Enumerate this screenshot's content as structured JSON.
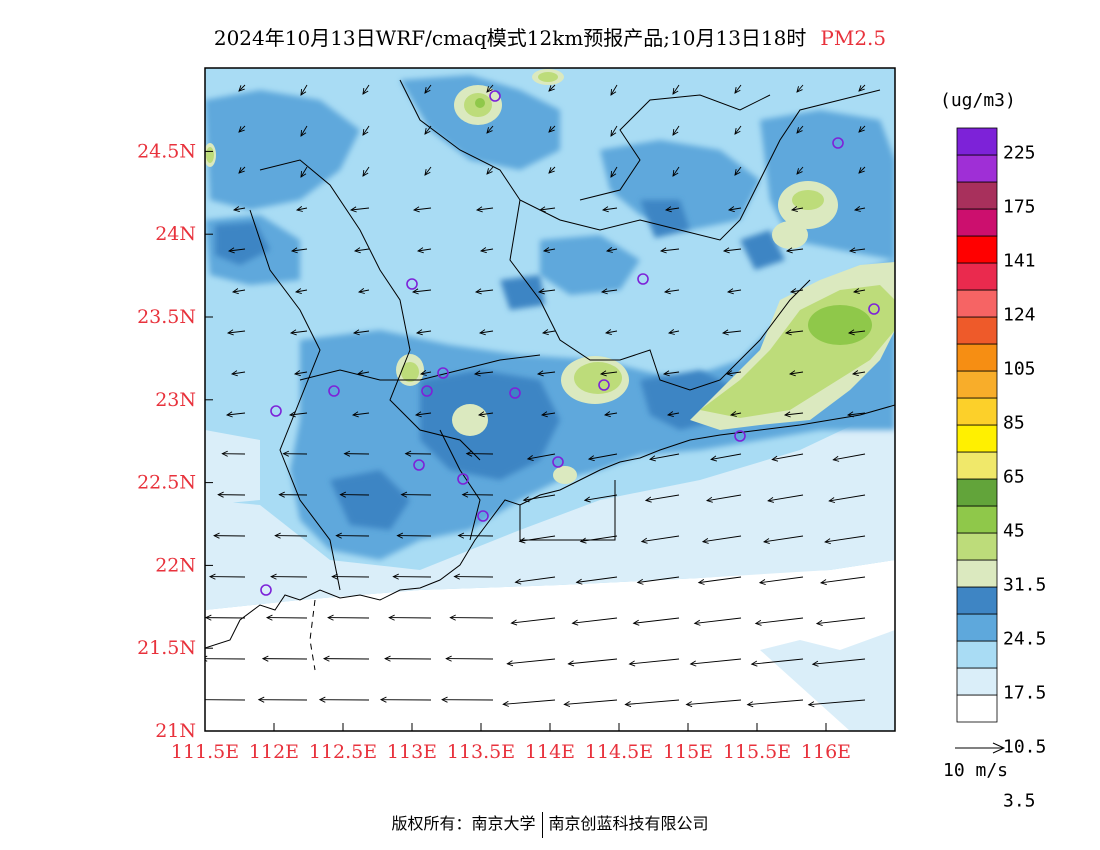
{
  "title": {
    "main": "2024年10月13日WRF/cmaq模式12km预报产品;10月13日18时",
    "pollutant": "PM2.5"
  },
  "axes": {
    "x_ticks": [
      "111.5E",
      "112E",
      "112.5E",
      "113E",
      "113.5E",
      "114E",
      "114.5E",
      "115E",
      "115.5E",
      "116E"
    ],
    "y_ticks": [
      "21N",
      "21.5N",
      "22N",
      "22.5N",
      "23N",
      "23.5N",
      "24N",
      "24.5N"
    ],
    "tick_color": "#e8323c"
  },
  "legend": {
    "unit": "(ug/m3)",
    "labels": [
      "225",
      "175",
      "141",
      "124",
      "105",
      "85",
      "65",
      "45",
      "31.5",
      "24.5",
      "17.5",
      "10.5",
      "3.5"
    ],
    "colors": [
      "#ffffff",
      "#daeef9",
      "#a9dcf4",
      "#5ea8dc",
      "#3e85c4",
      "#dbe9bf",
      "#bddc7a",
      "#8fc84a",
      "#62a43a",
      "#f0e86a",
      "#fff000",
      "#fcd02a",
      "#f8ad2a",
      "#f68e13",
      "#ee5a2a",
      "#f66464",
      "#ea2a4e",
      "#ff0000",
      "#cc0f6e",
      "#a8305c",
      "#9f2fd6",
      "#7d22d8"
    ]
  },
  "wind_reference": {
    "label": "10 m/s"
  },
  "footer": {
    "left": "版权所有：南京大学",
    "right": "南京创蓝科技有限公司"
  }
}
